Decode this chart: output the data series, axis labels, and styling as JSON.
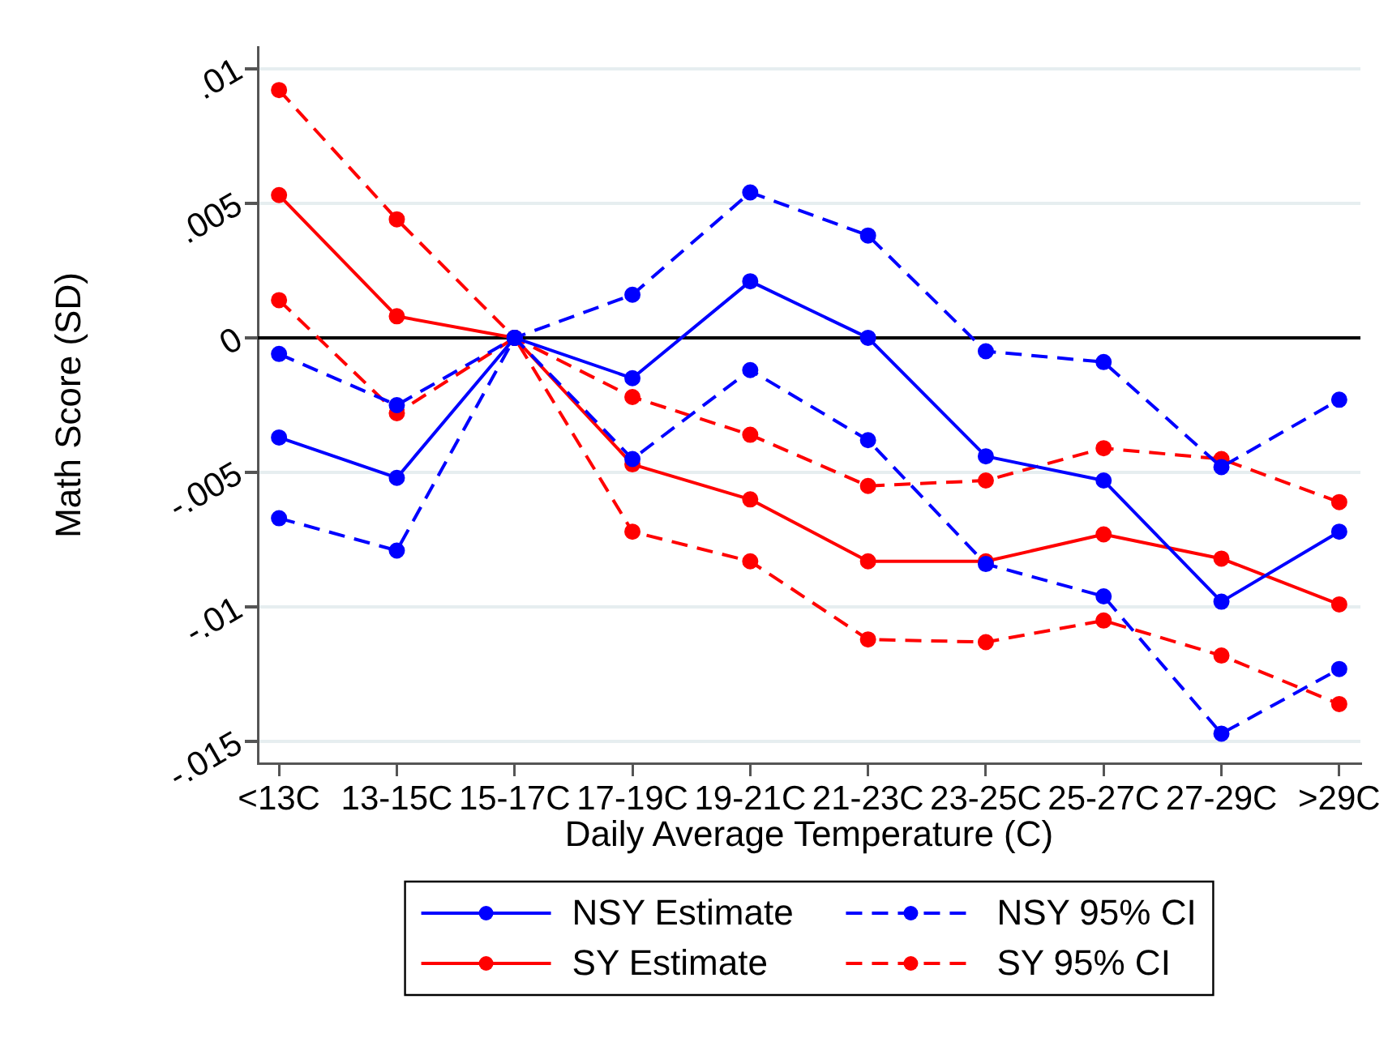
{
  "chart_data": {
    "type": "line",
    "xlabel": "Daily Average Temperature (C)",
    "ylabel": "Math Score (SD)",
    "categories": [
      "<13C",
      "13-15C",
      "15-17C",
      "17-19C",
      "19-21C",
      "21-23C",
      "23-25C",
      "25-27C",
      "27-29C",
      ">29C"
    ],
    "series": [
      {
        "name": "NSY Estimate",
        "color": "#0000ff",
        "line_style": "solid",
        "values": [
          -0.0037,
          -0.0052,
          0,
          -0.0015,
          0.0021,
          0,
          -0.0044,
          -0.0053,
          -0.0098,
          -0.0072
        ]
      },
      {
        "name": "NSY 95% CI",
        "color": "#0000ff",
        "line_style": "dashed",
        "values": [
          -0.0006,
          -0.0025,
          0,
          0.0016,
          0.0054,
          0.0038,
          -0.0005,
          -0.0009,
          -0.0048,
          -0.0023
        ]
      },
      {
        "color": "#0000ff",
        "line_style": "dashed",
        "values": [
          -0.0067,
          -0.0079,
          0,
          -0.0045,
          -0.0012,
          -0.0038,
          -0.0084,
          -0.0096,
          -0.0147,
          -0.0123
        ]
      },
      {
        "name": "SY Estimate",
        "color": "#ff0000",
        "line_style": "solid",
        "values": [
          0.0053,
          0.0008,
          0,
          -0.0047,
          -0.006,
          -0.0083,
          -0.0083,
          -0.0073,
          -0.0082,
          -0.0099
        ]
      },
      {
        "name": "SY 95% CI",
        "color": "#ff0000",
        "line_style": "dashed",
        "values": [
          0.0092,
          0.0044,
          0,
          -0.0022,
          -0.0036,
          -0.0055,
          -0.0053,
          -0.0041,
          -0.0045,
          -0.0061
        ]
      },
      {
        "color": "#ff0000",
        "line_style": "dashed",
        "values": [
          0.0014,
          -0.0028,
          0,
          -0.0072,
          -0.0083,
          -0.0112,
          -0.0113,
          -0.0105,
          -0.0118,
          -0.0136
        ]
      }
    ],
    "ylim": [
      -0.0158,
      0.0108
    ],
    "yticks": [
      {
        "value": 0.01,
        "label": ".01"
      },
      {
        "value": 0.005,
        "label": ".005"
      },
      0,
      {
        "value": -0.005,
        "label": "-.005"
      },
      {
        "value": -0.01,
        "label": "-.01"
      },
      {
        "value": -0.015,
        "label": "-.015"
      }
    ],
    "ref_lines": [
      {
        "axis": "y",
        "value": 0,
        "color": "#000000"
      }
    ],
    "grid": "y",
    "legend": "bottom",
    "marker": "circle"
  }
}
